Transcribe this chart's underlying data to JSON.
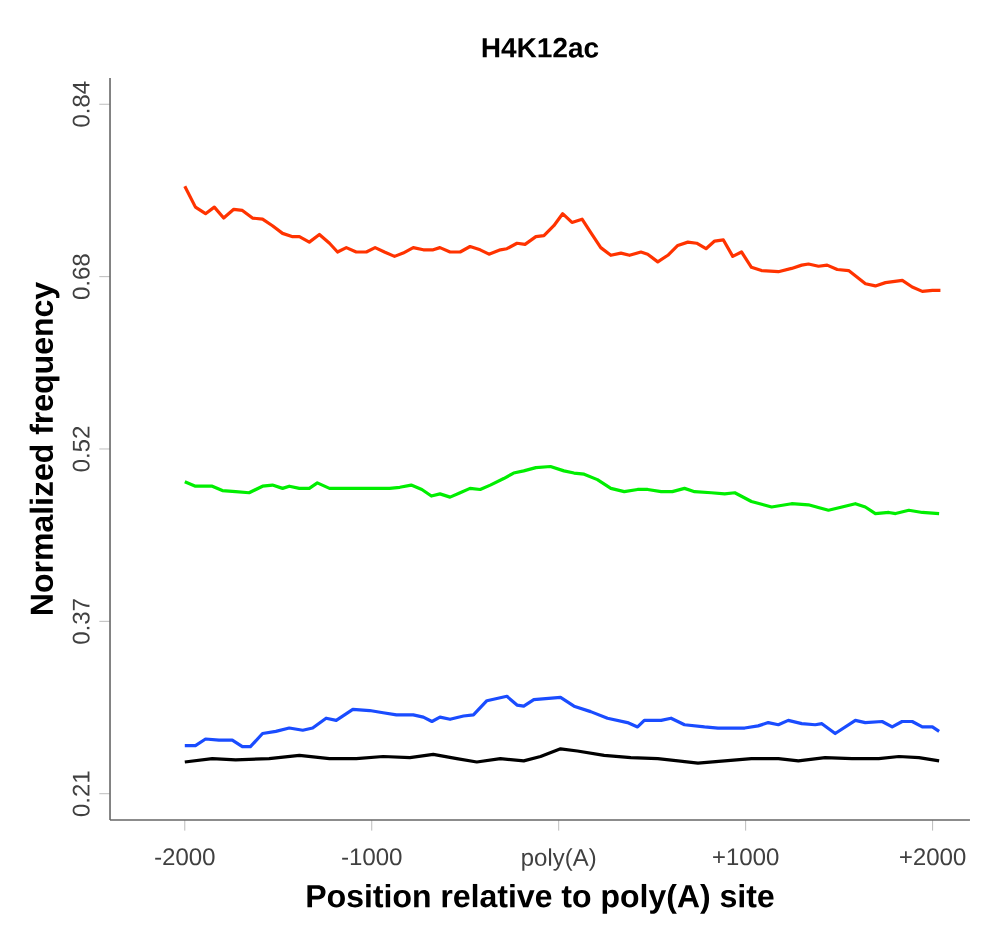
{
  "chart_data": {
    "type": "line",
    "title": "H4K12ac",
    "xlabel": "Position relative to poly(A) site",
    "ylabel": "Normalized frequency",
    "xlim": [
      -2400,
      2200
    ],
    "ylim": [
      0.186,
      0.864
    ],
    "xticks": [
      {
        "value": -2000,
        "label": "-2000"
      },
      {
        "value": -1000,
        "label": "-1000"
      },
      {
        "value": 0,
        "label": "poly(A)"
      },
      {
        "value": 1000,
        "label": "+1000"
      },
      {
        "value": 2000,
        "label": "+2000"
      }
    ],
    "yticks": [
      {
        "value": 0.21,
        "label": "0.21"
      },
      {
        "value": 0.3675,
        "label": "0.37"
      },
      {
        "value": 0.525,
        "label": "0.52"
      },
      {
        "value": 0.6825,
        "label": "0.68"
      },
      {
        "value": 0.84,
        "label": "0.84"
      }
    ],
    "series": [
      {
        "color": "#ff3300",
        "x": [
          -2000,
          -1943,
          -1889,
          -1842,
          -1792,
          -1738,
          -1692,
          -1638,
          -1584,
          -1531,
          -1477,
          -1423,
          -1387,
          -1334,
          -1280,
          -1226,
          -1183,
          -1136,
          -1083,
          -1029,
          -982,
          -932,
          -878,
          -832,
          -778,
          -724,
          -671,
          -635,
          -581,
          -527,
          -474,
          -420,
          -373,
          -312,
          -277,
          -223,
          -180,
          -122,
          -79,
          -26,
          21,
          71,
          125,
          171,
          225,
          279,
          333,
          379,
          440,
          476,
          530,
          584,
          637,
          691,
          738,
          788,
          834,
          881,
          931,
          978,
          1031,
          1085,
          1175,
          1246,
          1300,
          1336,
          1390,
          1436,
          1490,
          1551,
          1641,
          1694,
          1748,
          1838,
          1891,
          1945,
          1999,
          2042
        ],
        "values": [
          0.765,
          0.746,
          0.74,
          0.746,
          0.736,
          0.744,
          0.743,
          0.736,
          0.735,
          0.729,
          0.722,
          0.719,
          0.719,
          0.714,
          0.721,
          0.713,
          0.705,
          0.709,
          0.705,
          0.705,
          0.709,
          0.705,
          0.701,
          0.704,
          0.709,
          0.707,
          0.707,
          0.709,
          0.705,
          0.705,
          0.71,
          0.707,
          0.703,
          0.707,
          0.708,
          0.713,
          0.712,
          0.719,
          0.72,
          0.729,
          0.74,
          0.732,
          0.735,
          0.723,
          0.709,
          0.702,
          0.704,
          0.702,
          0.705,
          0.703,
          0.696,
          0.702,
          0.711,
          0.714,
          0.713,
          0.708,
          0.715,
          0.716,
          0.701,
          0.705,
          0.691,
          0.688,
          0.687,
          0.69,
          0.693,
          0.694,
          0.692,
          0.693,
          0.689,
          0.688,
          0.676,
          0.674,
          0.677,
          0.679,
          0.673,
          0.669,
          0.67,
          0.67
        ]
      },
      {
        "color": "#00ee00",
        "x": [
          -2000,
          -1943,
          -1853,
          -1799,
          -1728,
          -1656,
          -1584,
          -1531,
          -1477,
          -1441,
          -1387,
          -1334,
          -1291,
          -1226,
          -1154,
          -1083,
          -1011,
          -904,
          -850,
          -789,
          -732,
          -681,
          -635,
          -581,
          -527,
          -474,
          -420,
          -366,
          -294,
          -241,
          -187,
          -122,
          -44,
          28,
          82,
          136,
          207,
          279,
          351,
          422,
          476,
          548,
          608,
          673,
          727,
          816,
          888,
          942,
          1031,
          1139,
          1246,
          1336,
          1443,
          1515,
          1587,
          1640,
          1694,
          1766,
          1802,
          1873,
          1945,
          2035
        ],
        "values": [
          0.495,
          0.491,
          0.491,
          0.487,
          0.486,
          0.485,
          0.491,
          0.492,
          0.489,
          0.491,
          0.489,
          0.489,
          0.494,
          0.489,
          0.489,
          0.489,
          0.489,
          0.489,
          0.49,
          0.492,
          0.488,
          0.482,
          0.484,
          0.481,
          0.485,
          0.489,
          0.488,
          0.492,
          0.498,
          0.503,
          0.505,
          0.508,
          0.509,
          0.505,
          0.503,
          0.502,
          0.497,
          0.489,
          0.486,
          0.488,
          0.488,
          0.486,
          0.486,
          0.489,
          0.486,
          0.485,
          0.484,
          0.485,
          0.477,
          0.472,
          0.475,
          0.474,
          0.469,
          0.472,
          0.475,
          0.472,
          0.466,
          0.467,
          0.466,
          0.469,
          0.467,
          0.466
        ]
      },
      {
        "color": "#1a4cff",
        "x": [
          -2000,
          -1943,
          -1889,
          -1817,
          -1746,
          -1692,
          -1649,
          -1584,
          -1513,
          -1441,
          -1369,
          -1316,
          -1244,
          -1190,
          -1101,
          -1011,
          -939,
          -868,
          -778,
          -724,
          -678,
          -635,
          -581,
          -509,
          -456,
          -384,
          -277,
          -223,
          -187,
          -133,
          10,
          82,
          171,
          261,
          368,
          422,
          458,
          548,
          601,
          673,
          780,
          852,
          995,
          1067,
          1121,
          1175,
          1228,
          1300,
          1372,
          1408,
          1479,
          1587,
          1640,
          1730,
          1784,
          1837,
          1891,
          1945,
          1999,
          2035
        ],
        "values": [
          0.254,
          0.254,
          0.26,
          0.259,
          0.259,
          0.253,
          0.253,
          0.265,
          0.267,
          0.27,
          0.268,
          0.27,
          0.279,
          0.277,
          0.287,
          0.286,
          0.284,
          0.282,
          0.282,
          0.28,
          0.276,
          0.28,
          0.278,
          0.281,
          0.282,
          0.295,
          0.299,
          0.291,
          0.29,
          0.296,
          0.298,
          0.29,
          0.285,
          0.279,
          0.275,
          0.271,
          0.277,
          0.277,
          0.279,
          0.273,
          0.271,
          0.27,
          0.27,
          0.272,
          0.275,
          0.273,
          0.277,
          0.274,
          0.273,
          0.274,
          0.265,
          0.277,
          0.275,
          0.276,
          0.271,
          0.276,
          0.276,
          0.271,
          0.271,
          0.267
        ]
      },
      {
        "color": "#000000",
        "x": [
          -2000,
          -1853,
          -1728,
          -1549,
          -1387,
          -1226,
          -1083,
          -939,
          -796,
          -671,
          -545,
          -438,
          -312,
          -187,
          -97,
          10,
          100,
          243,
          386,
          530,
          745,
          888,
          1031,
          1175,
          1282,
          1425,
          1569,
          1712,
          1820,
          1927,
          2035
        ],
        "values": [
          0.239,
          0.242,
          0.241,
          0.242,
          0.245,
          0.242,
          0.242,
          0.244,
          0.243,
          0.246,
          0.242,
          0.239,
          0.242,
          0.24,
          0.244,
          0.251,
          0.249,
          0.245,
          0.243,
          0.242,
          0.238,
          0.24,
          0.242,
          0.242,
          0.24,
          0.243,
          0.242,
          0.242,
          0.244,
          0.243,
          0.24
        ]
      }
    ]
  }
}
